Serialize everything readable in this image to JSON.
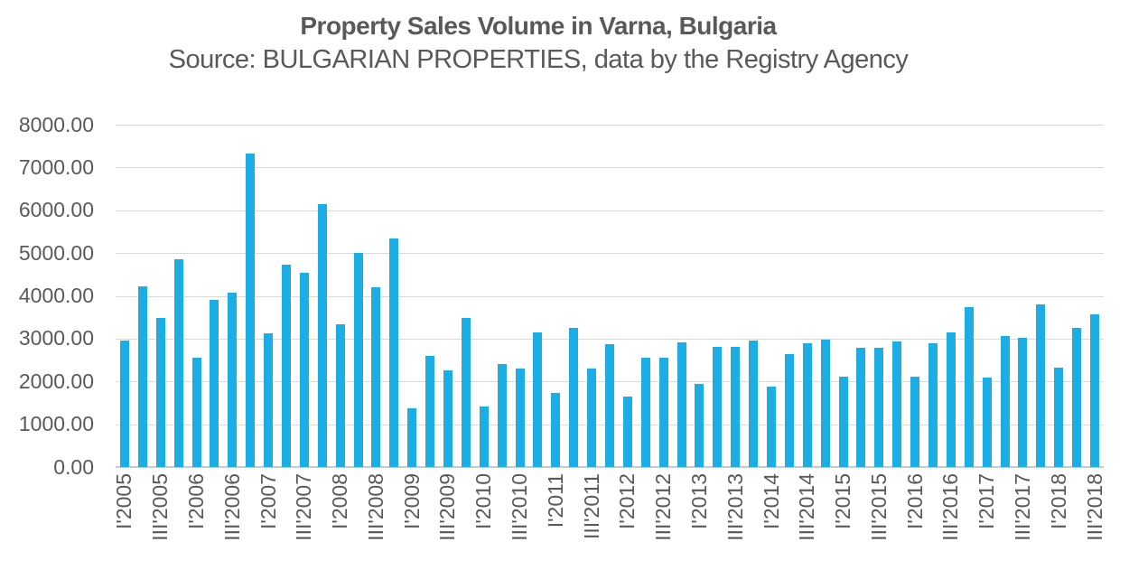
{
  "chart_data": {
    "type": "bar",
    "title": "Property Sales Volume in Varna, Bulgaria",
    "subtitle": "Source: BULGARIAN PROPERTIES, data by the Registry Agency",
    "categories": [
      "I'2005",
      "II'2005",
      "III'2005",
      "IV'2005",
      "I'2006",
      "II'2006",
      "III'2006",
      "IV'2006",
      "I'2007",
      "II'2007",
      "III'2007",
      "IV'2007",
      "I'2008",
      "II'2008",
      "III'2008",
      "IV'2008",
      "I'2009",
      "II'2009",
      "III'2009",
      "IV'2009",
      "I'2010",
      "II'2010",
      "III'2010",
      "IV'2010",
      "I'2011",
      "II'2011",
      "III'2011",
      "IV'2011",
      "I'2012",
      "II'2012",
      "III'2012",
      "IV'2012",
      "I'2013",
      "II'2013",
      "III'2013",
      "IV'2013",
      "I'2014",
      "II'2014",
      "III'2014",
      "IV'2014",
      "I'2015",
      "II'2015",
      "III'2015",
      "IV'2015",
      "I'2016",
      "II'2016",
      "III'2016",
      "IV'2016",
      "I'2017",
      "II'2017",
      "III'2017",
      "IV'2017",
      "I'2018",
      "II'2018",
      "III'2018"
    ],
    "values": [
      2950,
      4220,
      3480,
      4850,
      2560,
      3900,
      4080,
      7320,
      3130,
      4720,
      4530,
      6150,
      3330,
      5000,
      4190,
      5350,
      1380,
      2600,
      2260,
      3490,
      1420,
      2410,
      2310,
      3140,
      1730,
      3250,
      2300,
      2870,
      1650,
      2560,
      2560,
      2910,
      1940,
      2800,
      2800,
      2950,
      1870,
      2630,
      2900,
      2980,
      2120,
      2790,
      2790,
      2930,
      2120,
      2900,
      3140,
      3740,
      2090,
      3060,
      3020,
      3810,
      2330,
      3250,
      3560
    ],
    "xlabel": "",
    "ylabel": "",
    "ylim": [
      0,
      8000
    ],
    "y_tick_step": 1000,
    "y_tick_labels": [
      "8000.00",
      "7000.00",
      "6000.00",
      "5000.00",
      "4000.00",
      "3000.00",
      "2000.00",
      "1000.00",
      "0.00"
    ],
    "x_ticks_every": 2,
    "x_tick_rotation_deg": 90,
    "legend": "none",
    "grid": "horizontal",
    "colors": {
      "bar": "#1CADE4",
      "text": "#595959",
      "gridline": "#D9D9D9",
      "baseline": "#C9C9C9",
      "background": "#FFFFFF"
    }
  }
}
